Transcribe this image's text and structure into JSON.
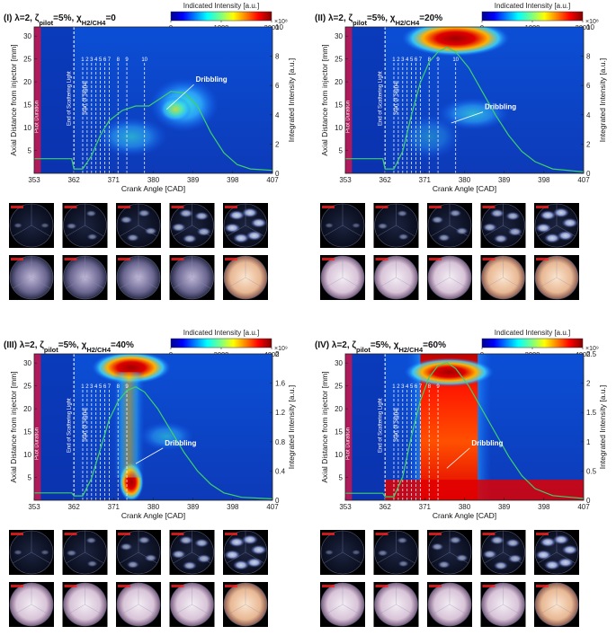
{
  "panels": [
    {
      "label": "(I)",
      "title_lambda": "λ=2, ζ",
      "title_sub1": "pilot",
      "title_mid": "=5%, χ",
      "title_sub2": "H2/CH4",
      "title_end": "=0",
      "cbar_title": "Indicated Intensity [a.u.]",
      "cbar_ticks": [
        "0",
        "1000",
        "2000"
      ],
      "right_exp": "×10⁸",
      "right_ticks": [
        "0",
        "2",
        "4",
        "6",
        "8",
        "10"
      ],
      "right_max": 10,
      "y_ticks": [
        "5",
        "10",
        "15",
        "20",
        "25",
        "30"
      ],
      "x_ticks": [
        "353",
        "362",
        "371",
        "380",
        "389",
        "398",
        "407"
      ],
      "ylabel": "Axial Distance from injector [mm]",
      "xlabel": "Crank Angle [CAD]",
      "ylabel_right": "Integrated Intensity [a.u.]",
      "pilot_label": "Pilot Duration",
      "scatter_label": "End of Scattering Light",
      "signal_label": "Start of Signal",
      "dribbling": "Dribbling",
      "frame_numbers": [
        "1",
        "2",
        "3",
        "4",
        "5",
        "6",
        "7",
        "8",
        "9",
        "10"
      ],
      "curve": [
        [
          353,
          1.0
        ],
        [
          360,
          1.0
        ],
        [
          361.5,
          1.0
        ],
        [
          362,
          0.3
        ],
        [
          364,
          0.3
        ],
        [
          366,
          1.2
        ],
        [
          368,
          2.6
        ],
        [
          370,
          3.6
        ],
        [
          373,
          4.3
        ],
        [
          376,
          4.6
        ],
        [
          379,
          4.6
        ],
        [
          381,
          5.0
        ],
        [
          384,
          5.6
        ],
        [
          387,
          5.5
        ],
        [
          390,
          4.6
        ],
        [
          393,
          2.8
        ],
        [
          396,
          1.4
        ],
        [
          399,
          0.6
        ],
        [
          402,
          0.3
        ],
        [
          407,
          0.2
        ]
      ]
    },
    {
      "label": "(II)",
      "title_lambda": "λ=2, ζ",
      "title_sub1": "pilot",
      "title_mid": "=5%, χ",
      "title_sub2": "H2/CH4",
      "title_end": "=20%",
      "cbar_title": "Indicated Intensity [a.u.]",
      "cbar_ticks": [
        "0",
        "1000",
        "2000"
      ],
      "right_exp": "×10⁸",
      "right_ticks": [
        "0",
        "2",
        "4",
        "6",
        "8",
        "10"
      ],
      "right_max": 10,
      "y_ticks": [
        "5",
        "10",
        "15",
        "20",
        "25",
        "30"
      ],
      "x_ticks": [
        "353",
        "362",
        "371",
        "380",
        "389",
        "398",
        "407"
      ],
      "ylabel": "Axial Distance from injector [mm]",
      "xlabel": "Crank Angle [CAD]",
      "ylabel_right": "Integrated Intensity [a.u.]",
      "pilot_label": "Pilot Duration",
      "scatter_label": "End of Scattering Light",
      "signal_label": "Start of Signal",
      "dribbling": "Dribbling",
      "frame_numbers": [
        "1",
        "2",
        "3",
        "4",
        "5",
        "6",
        "7",
        "8",
        "9",
        "10"
      ],
      "curve": [
        [
          353,
          1.0
        ],
        [
          360,
          1.0
        ],
        [
          361.5,
          1.0
        ],
        [
          362,
          0.3
        ],
        [
          364,
          0.3
        ],
        [
          366,
          1.5
        ],
        [
          368,
          4.0
        ],
        [
          370,
          6.2
        ],
        [
          372,
          7.6
        ],
        [
          374,
          8.3
        ],
        [
          376,
          8.6
        ],
        [
          378,
          8.3
        ],
        [
          381,
          7.2
        ],
        [
          384,
          5.6
        ],
        [
          387,
          4.0
        ],
        [
          390,
          2.6
        ],
        [
          393,
          1.5
        ],
        [
          396,
          0.8
        ],
        [
          400,
          0.3
        ],
        [
          407,
          0.1
        ]
      ]
    },
    {
      "label": "(III)",
      "title_lambda": "λ=2, ζ",
      "title_sub1": "pilot",
      "title_mid": "=5%, χ",
      "title_sub2": "H2/CH4",
      "title_end": "=40%",
      "cbar_title": "Indicated Intensity [a.u.]",
      "cbar_ticks": [
        "0",
        "2000",
        "4000"
      ],
      "right_exp": "×10⁹",
      "right_ticks": [
        "0",
        "0.4",
        "0.8",
        "1.2",
        "1.6",
        "2"
      ],
      "right_max": 2,
      "y_ticks": [
        "5",
        "10",
        "15",
        "20",
        "25",
        "30"
      ],
      "x_ticks": [
        "353",
        "362",
        "371",
        "380",
        "389",
        "398",
        "407"
      ],
      "ylabel": "Axial Distance from injector [mm]",
      "xlabel": "Crank Angle [CAD]",
      "ylabel_right": "Integrated Intensity [a.u.]",
      "pilot_label": "Pilot Duration",
      "scatter_label": "End of Scattering Light",
      "signal_label": "Start of Signal",
      "dribbling": "Dribbling",
      "frame_numbers": [
        "1",
        "2",
        "3",
        "4",
        "5",
        "6",
        "7",
        "8",
        "9"
      ],
      "curve": [
        [
          353,
          0.1
        ],
        [
          361.5,
          0.1
        ],
        [
          362,
          0.06
        ],
        [
          364,
          0.06
        ],
        [
          366,
          0.3
        ],
        [
          368,
          0.7
        ],
        [
          370,
          1.1
        ],
        [
          372,
          1.35
        ],
        [
          374,
          1.5
        ],
        [
          376,
          1.55
        ],
        [
          378,
          1.48
        ],
        [
          381,
          1.25
        ],
        [
          384,
          0.95
        ],
        [
          387,
          0.65
        ],
        [
          390,
          0.4
        ],
        [
          393,
          0.22
        ],
        [
          396,
          0.1
        ],
        [
          400,
          0.04
        ],
        [
          407,
          0.02
        ]
      ]
    },
    {
      "label": "(IV)",
      "title_lambda": "λ=2, ζ",
      "title_sub1": "pilot",
      "title_mid": "=5%, χ",
      "title_sub2": "H2/CH4",
      "title_end": "=60%",
      "cbar_title": "Indicated Intensity [a.u.]",
      "cbar_ticks": [
        "0",
        "2000",
        "4000"
      ],
      "right_exp": "×10⁹",
      "right_ticks": [
        "0",
        "0.5",
        "1",
        "1.5",
        "2",
        "2.5"
      ],
      "right_max": 2.5,
      "y_ticks": [
        "5",
        "10",
        "15",
        "20",
        "25",
        "30"
      ],
      "x_ticks": [
        "353",
        "362",
        "371",
        "380",
        "389",
        "398",
        "407"
      ],
      "ylabel": "Axial Distance from injector [mm]",
      "xlabel": "Crank Angle [CAD]",
      "ylabel_right": "Integrated Intensity [a.u.]",
      "pilot_label": "Pilot Duration",
      "scatter_label": "End of Scattering Light",
      "signal_label": "Start of Signal",
      "dribbling": "Dribbling",
      "frame_numbers": [
        "1",
        "2",
        "3",
        "4",
        "5",
        "6",
        "7",
        "8",
        "9"
      ],
      "curve": [
        [
          353,
          0.12
        ],
        [
          361.5,
          0.12
        ],
        [
          362,
          0.06
        ],
        [
          364,
          0.06
        ],
        [
          366,
          0.4
        ],
        [
          368,
          1.1
        ],
        [
          370,
          1.7
        ],
        [
          372,
          2.1
        ],
        [
          374,
          2.3
        ],
        [
          376,
          2.35
        ],
        [
          378,
          2.25
        ],
        [
          381,
          1.95
        ],
        [
          384,
          1.55
        ],
        [
          387,
          1.15
        ],
        [
          390,
          0.75
        ],
        [
          393,
          0.42
        ],
        [
          396,
          0.2
        ],
        [
          400,
          0.08
        ],
        [
          407,
          0.03
        ]
      ]
    }
  ],
  "colors": {
    "curve": "#3fd06a",
    "pilot_band": "#b0195a",
    "lines": "#ffffff",
    "frame_label": "#ff2020"
  }
}
